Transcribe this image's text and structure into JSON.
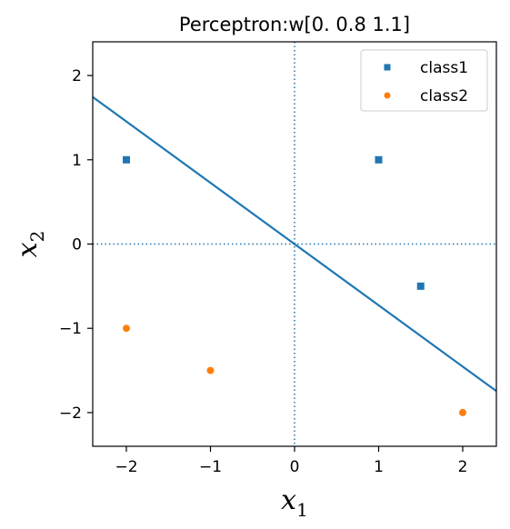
{
  "chart_data": {
    "type": "scatter",
    "title": "Perceptron:w[0.  0.8 1.1]",
    "xlabel": "x",
    "xlabel_sub": "1",
    "ylabel": "x",
    "ylabel_sub": "2",
    "xlim": [
      -2.4,
      2.4
    ],
    "ylim": [
      -2.4,
      2.4
    ],
    "xticks": [
      -2,
      -1,
      0,
      1,
      2
    ],
    "yticks": [
      -2,
      -1,
      0,
      1,
      2
    ],
    "xtick_labels": [
      "−2",
      "−1",
      "0",
      "1",
      "2"
    ],
    "ytick_labels": [
      "−2",
      "−1",
      "0",
      "1",
      "2"
    ],
    "grid": false,
    "legend_position": "top-right",
    "series": [
      {
        "name": "class1",
        "marker": "square",
        "color": "#1f77b4",
        "points": [
          [
            -2,
            1
          ],
          [
            1,
            1
          ],
          [
            1.5,
            -0.5
          ]
        ]
      },
      {
        "name": "class2",
        "marker": "circle",
        "color": "#ff7f0e",
        "points": [
          [
            -2,
            -1
          ],
          [
            -1,
            -1.5
          ],
          [
            2,
            -2
          ]
        ]
      }
    ],
    "decision_boundary": {
      "weights": [
        0,
        0.8,
        1.1
      ],
      "color": "#1f77b4",
      "points": [
        [
          -2.4,
          1.745
        ],
        [
          2.4,
          -1.745
        ]
      ]
    },
    "reference_lines": {
      "x": 0,
      "y": 0,
      "style": "dotted",
      "color": "#1f77b4"
    }
  }
}
